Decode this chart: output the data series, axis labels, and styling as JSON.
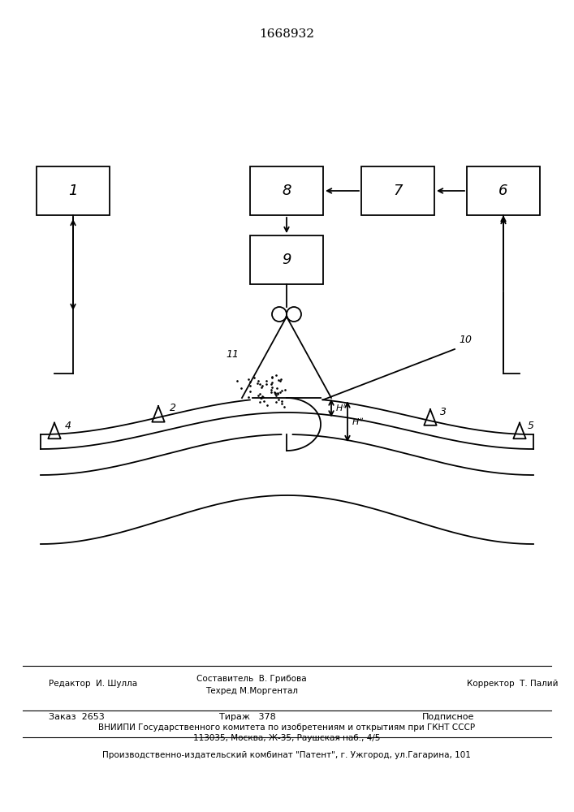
{
  "title": "1668932",
  "bg_color": "#ffffff",
  "line_color": "#000000",
  "footer_line1_left": "Редактор  И. Шулла",
  "footer_line1_center_a": "Составитель  В. Грибова",
  "footer_line1_center_b": "Техред М.Моргентал",
  "footer_line1_right": "Корректор  Т. Палий",
  "footer_line2a": "Заказ  2653",
  "footer_line2b": "Тираж   378",
  "footer_line2c": "Подписное",
  "footer_line3": "ВНИИПИ Государственного комитета по изобретениям и открытиям при ГКНТ СССР",
  "footer_line4": "113035, Москва, Ж-35, Раушская наб., 4/5",
  "footer_line5": "Производственно-издательский комбинат \"Патент\", г. Ужгород, ул.Гагарина, 101"
}
